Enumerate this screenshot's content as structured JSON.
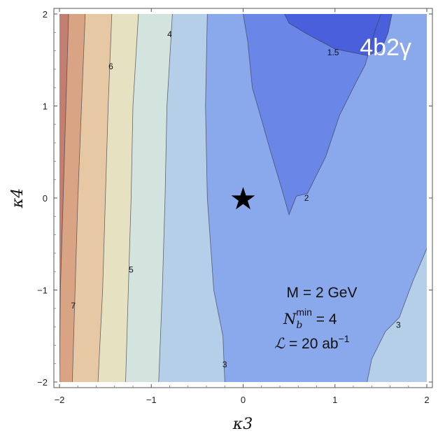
{
  "chart_data": {
    "type": "contour",
    "title": "",
    "xlabel": "κ3",
    "ylabel": "κ4",
    "xlim": [
      -2,
      2
    ],
    "ylim": [
      -2,
      2
    ],
    "x_ticks": [
      "−2",
      "−1",
      "0",
      "1",
      "2"
    ],
    "y_ticks": [
      "−2",
      "−1",
      "0",
      "1",
      "2"
    ],
    "x_tick_values": [
      -2,
      -1,
      0,
      1,
      2
    ],
    "y_tick_values": [
      -2,
      -1,
      0,
      1,
      2
    ],
    "levels": [
      1.5,
      2,
      3,
      4,
      5,
      6,
      7
    ],
    "level_colors": [
      "#4a5fdb",
      "#6a86e6",
      "#8aa8ec",
      "#b5cfe9",
      "#d3e3de",
      "#e6e1c1",
      "#e6c8a4",
      "#d9a484",
      "#c27e6e"
    ],
    "contours": [
      {
        "label": "1.5",
        "label_at": [
          0.98,
          1.58
        ],
        "boundary": [
          [
            0.45,
            2.0
          ],
          [
            0.5,
            1.9
          ],
          [
            0.7,
            1.78
          ],
          [
            1.0,
            1.62
          ],
          [
            1.35,
            1.55
          ],
          [
            1.5,
            1.6
          ],
          [
            1.58,
            1.8
          ],
          [
            1.62,
            2.0
          ]
        ]
      },
      {
        "label": "2",
        "label_at": [
          0.69,
          0.0
        ],
        "boundary": [
          [
            0.0,
            2.0
          ],
          [
            0.05,
            1.7
          ],
          [
            0.1,
            1.2
          ],
          [
            0.2,
            0.85
          ],
          [
            0.3,
            0.5
          ],
          [
            0.42,
            0.1
          ],
          [
            0.5,
            -0.18
          ],
          [
            0.58,
            0.02
          ],
          [
            0.7,
            0.05
          ],
          [
            0.9,
            0.45
          ],
          [
            1.05,
            0.9
          ],
          [
            1.2,
            1.2
          ],
          [
            1.33,
            1.45
          ],
          [
            1.43,
            1.8
          ],
          [
            1.5,
            2.0
          ]
        ]
      },
      {
        "label": "3",
        "label_at": [
          -0.2,
          -1.81
        ],
        "boundary": [
          [
            -0.39,
            2.0
          ],
          [
            -0.41,
            1.0
          ],
          [
            -0.39,
            0.0
          ],
          [
            -0.32,
            -1.0
          ],
          [
            -0.22,
            -1.5
          ],
          [
            -0.2,
            -2.0
          ]
        ]
      },
      {
        "label": "3",
        "label_at": [
          1.69,
          -1.38
        ],
        "boundary": [
          [
            1.35,
            -2.0
          ],
          [
            1.4,
            -1.75
          ],
          [
            1.55,
            -1.45
          ],
          [
            1.7,
            -1.3
          ],
          [
            1.85,
            -0.9
          ],
          [
            2.0,
            -0.55
          ]
        ]
      },
      {
        "label": "4",
        "label_at": [
          -0.8,
          1.78
        ],
        "boundary": [
          [
            -0.77,
            2.0
          ],
          [
            -0.83,
            1.0
          ],
          [
            -0.85,
            0.0
          ],
          [
            -0.88,
            -1.0
          ],
          [
            -0.92,
            -2.0
          ]
        ]
      },
      {
        "label": "5",
        "label_at": [
          -1.22,
          -0.78
        ],
        "boundary": [
          [
            -1.14,
            2.0
          ],
          [
            -1.2,
            1.0
          ],
          [
            -1.22,
            0.0
          ],
          [
            -1.25,
            -1.0
          ],
          [
            -1.28,
            -2.0
          ]
        ]
      },
      {
        "label": "6",
        "label_at": [
          -1.44,
          1.43
        ],
        "boundary": [
          [
            -1.43,
            2.0
          ],
          [
            -1.47,
            1.0
          ],
          [
            -1.5,
            0.0
          ],
          [
            -1.53,
            -1.0
          ],
          [
            -1.58,
            -2.0
          ]
        ]
      },
      {
        "label": "7",
        "label_at": [
          -1.85,
          -1.17
        ],
        "boundary": [
          [
            -1.72,
            2.0
          ],
          [
            -1.76,
            1.0
          ],
          [
            -1.8,
            0.0
          ],
          [
            -1.83,
            -1.0
          ],
          [
            -1.86,
            -2.0
          ]
        ]
      },
      {
        "label": "",
        "label_at": null,
        "boundary": [
          [
            -1.9,
            2.0
          ],
          [
            -1.93,
            1.0
          ],
          [
            -1.96,
            0.0
          ],
          [
            -1.99,
            -1.0
          ],
          [
            -2.0,
            -2.0
          ]
        ]
      }
    ],
    "marker": {
      "label": "★",
      "x": 0,
      "y": 0
    },
    "annotations": {
      "channel": "4b2γ",
      "mass": "M = 2 GeV",
      "nb_main": "N",
      "nb_sub": "b",
      "nb_sup": "min",
      "nb_value": " = 4",
      "lumi_symbol": "ℒ",
      "lumi_value": " = 20 ab",
      "lumi_exp": "−1"
    }
  }
}
